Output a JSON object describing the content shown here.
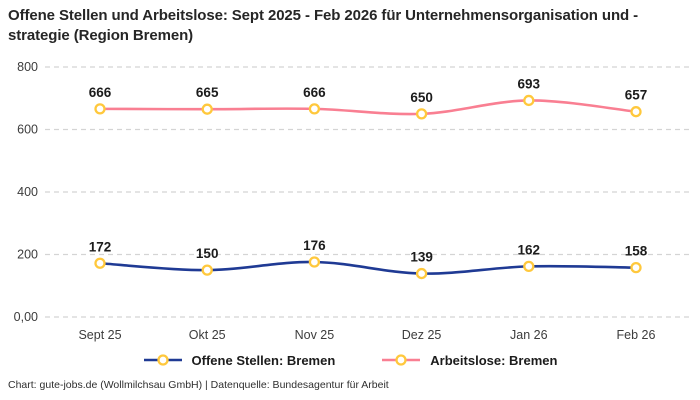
{
  "title": "Offene Stellen und Arbeitslose: Sept 2025 - Feb 2026 für Unternehmensorganisation und -strategie (Region Bremen)",
  "footer": "Chart: gute-jobs.de (Wollmilchsau GmbH) | Datenquelle: Bundesagentur für Arbeit",
  "chart_data": {
    "type": "line",
    "categories": [
      "Sept 25",
      "Okt 25",
      "Nov 25",
      "Dez 25",
      "Jan 26",
      "Feb 26"
    ],
    "series": [
      {
        "name": "Offene Stellen: Bremen",
        "color": "#1f3a94",
        "values": [
          172,
          150,
          176,
          139,
          162,
          158
        ]
      },
      {
        "name": "Arbeitslose: Bremen",
        "color": "#f97f92",
        "values": [
          666,
          665,
          666,
          650,
          693,
          657
        ]
      }
    ],
    "marker": {
      "fill": "#ffffff",
      "stroke": "#ffc83c"
    },
    "y_ticks": [
      {
        "label": "0,00",
        "value": 0
      },
      {
        "label": "200",
        "value": 200
      },
      {
        "label": "400",
        "value": 400
      },
      {
        "label": "600",
        "value": 600
      },
      {
        "label": "800",
        "value": 800
      }
    ],
    "ylim": [
      0,
      800
    ],
    "grid": "horizontal-dashed",
    "grid_color": "#d4d4d4",
    "value_label_color": "#1c1c1c",
    "axis_text_color": "#3c3c3c",
    "legend_position": "bottom"
  }
}
